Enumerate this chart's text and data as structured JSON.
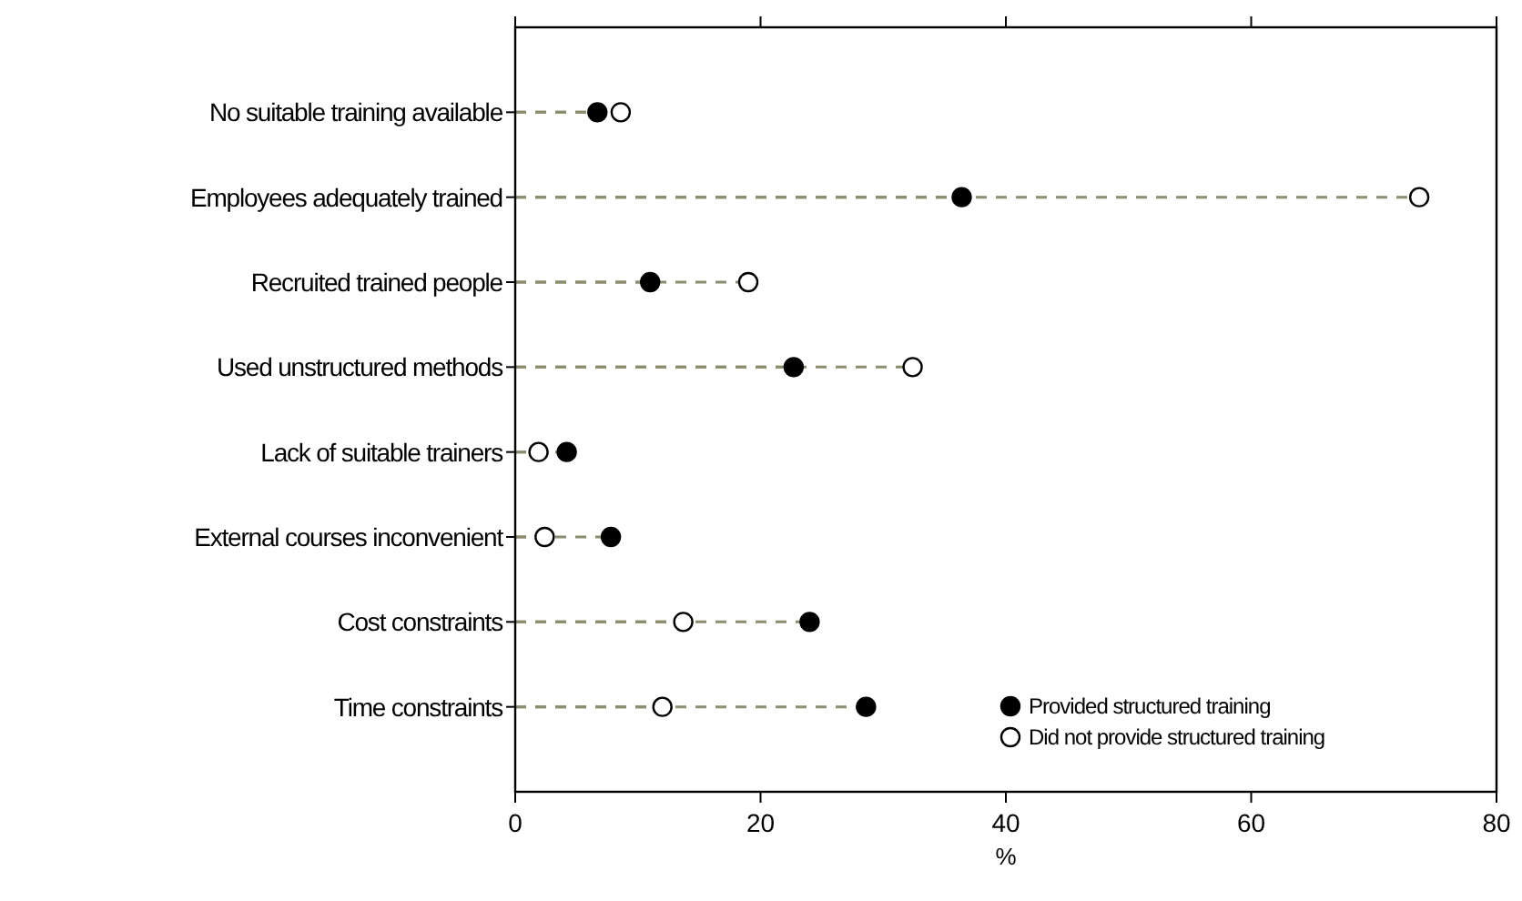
{
  "chart_data": {
    "type": "lollipop",
    "orientation": "horizontal",
    "xlabel": "%",
    "categories": [
      "No suitable training available",
      "Employees adequately trained",
      "Recruited trained people",
      "Used unstructured methods",
      "Lack of suitable trainers",
      "External courses inconvenient",
      "Cost constraints",
      "Time constraints"
    ],
    "series": [
      {
        "name": "Provided structured training",
        "color": "#000000",
        "values": [
          6.7,
          36.4,
          11.0,
          22.7,
          4.2,
          7.8,
          24.0,
          28.6
        ]
      },
      {
        "name": "Did not provide structured training",
        "color": "#ffffff",
        "values": [
          8.6,
          73.7,
          19.0,
          32.4,
          1.9,
          2.4,
          13.7,
          12.0
        ]
      }
    ],
    "xlim": [
      0,
      80
    ],
    "xticks": [
      0,
      20,
      40,
      60,
      80
    ],
    "grid": false,
    "legend": "bottom right",
    "marker": "circle",
    "line_style": "dashed"
  }
}
